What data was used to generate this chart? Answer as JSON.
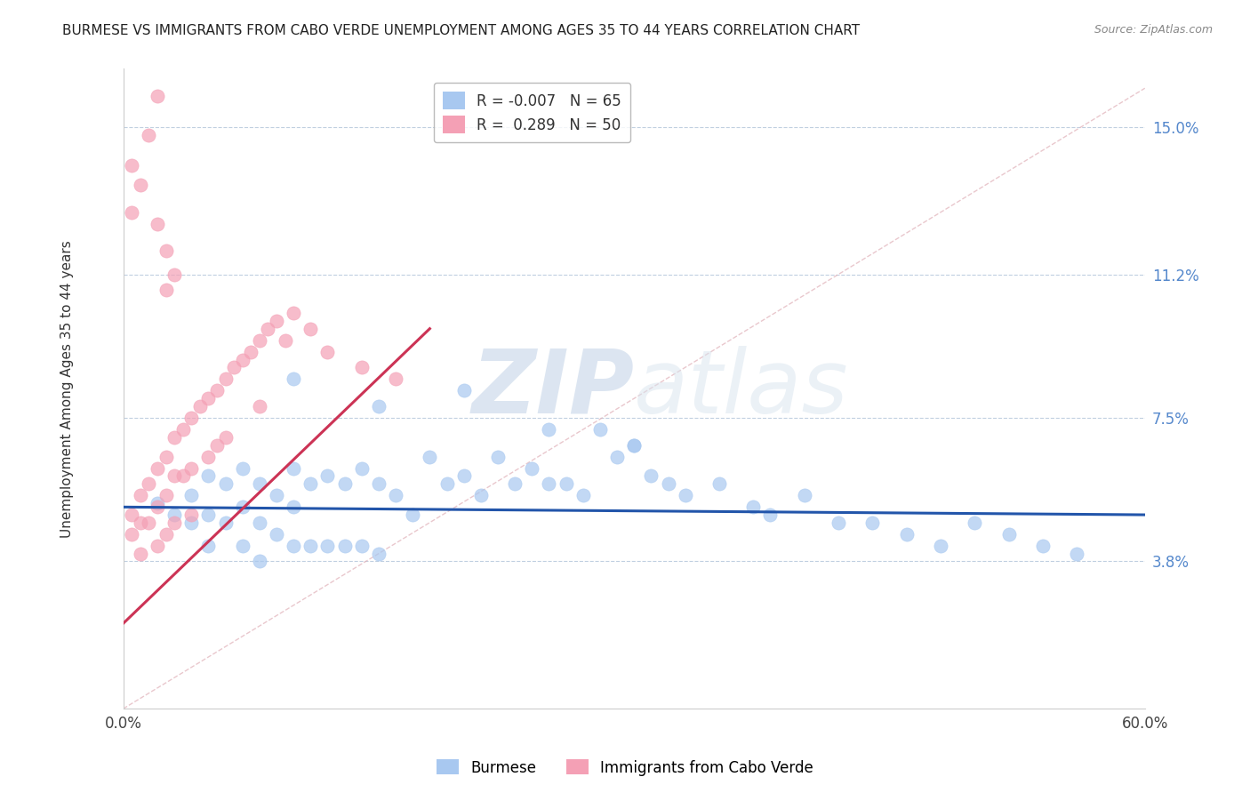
{
  "title": "BURMESE VS IMMIGRANTS FROM CABO VERDE UNEMPLOYMENT AMONG AGES 35 TO 44 YEARS CORRELATION CHART",
  "source": "Source: ZipAtlas.com",
  "ylabel": "Unemployment Among Ages 35 to 44 years",
  "yticks": [
    0.0,
    0.038,
    0.075,
    0.112,
    0.15
  ],
  "ytick_labels": [
    "",
    "3.8%",
    "7.5%",
    "11.2%",
    "15.0%"
  ],
  "xlim": [
    0.0,
    0.6
  ],
  "ylim": [
    0.0,
    0.165
  ],
  "burmese_R": -0.007,
  "burmese_N": 65,
  "caboverde_R": 0.289,
  "caboverde_N": 50,
  "burmese_color": "#a8c8f0",
  "caboverde_color": "#f4a0b5",
  "burmese_line_color": "#2255aa",
  "caboverde_line_color": "#cc3355",
  "diagonal_line_color": "#e0b0b8",
  "background_color": "#ffffff",
  "grid_color": "#c0cfe0",
  "watermark_zip": "ZIP",
  "watermark_atlas": "atlas",
  "burmese_x": [
    0.02,
    0.03,
    0.04,
    0.04,
    0.05,
    0.05,
    0.05,
    0.06,
    0.06,
    0.07,
    0.07,
    0.07,
    0.08,
    0.08,
    0.08,
    0.09,
    0.09,
    0.1,
    0.1,
    0.1,
    0.11,
    0.11,
    0.12,
    0.12,
    0.13,
    0.13,
    0.14,
    0.14,
    0.15,
    0.15,
    0.16,
    0.17,
    0.18,
    0.19,
    0.2,
    0.21,
    0.22,
    0.23,
    0.24,
    0.25,
    0.26,
    0.27,
    0.28,
    0.29,
    0.3,
    0.31,
    0.32,
    0.33,
    0.35,
    0.37,
    0.38,
    0.4,
    0.42,
    0.44,
    0.46,
    0.48,
    0.5,
    0.52,
    0.54,
    0.56,
    0.1,
    0.15,
    0.2,
    0.25,
    0.3
  ],
  "burmese_y": [
    0.053,
    0.05,
    0.055,
    0.048,
    0.06,
    0.05,
    0.042,
    0.058,
    0.048,
    0.062,
    0.052,
    0.042,
    0.058,
    0.048,
    0.038,
    0.055,
    0.045,
    0.062,
    0.052,
    0.042,
    0.058,
    0.042,
    0.06,
    0.042,
    0.058,
    0.042,
    0.062,
    0.042,
    0.058,
    0.04,
    0.055,
    0.05,
    0.065,
    0.058,
    0.06,
    0.055,
    0.065,
    0.058,
    0.062,
    0.058,
    0.058,
    0.055,
    0.072,
    0.065,
    0.068,
    0.06,
    0.058,
    0.055,
    0.058,
    0.052,
    0.05,
    0.055,
    0.048,
    0.048,
    0.045,
    0.042,
    0.048,
    0.045,
    0.042,
    0.04,
    0.085,
    0.078,
    0.082,
    0.072,
    0.068
  ],
  "caboverde_x": [
    0.005,
    0.005,
    0.01,
    0.01,
    0.01,
    0.015,
    0.015,
    0.02,
    0.02,
    0.02,
    0.025,
    0.025,
    0.025,
    0.03,
    0.03,
    0.03,
    0.035,
    0.035,
    0.04,
    0.04,
    0.04,
    0.045,
    0.05,
    0.05,
    0.055,
    0.055,
    0.06,
    0.06,
    0.065,
    0.07,
    0.075,
    0.08,
    0.08,
    0.085,
    0.09,
    0.095,
    0.1,
    0.11,
    0.12,
    0.14,
    0.16,
    0.01,
    0.02,
    0.025,
    0.03,
    0.015,
    0.02,
    0.025,
    0.005,
    0.005
  ],
  "caboverde_y": [
    0.05,
    0.045,
    0.055,
    0.048,
    0.04,
    0.058,
    0.048,
    0.062,
    0.052,
    0.042,
    0.065,
    0.055,
    0.045,
    0.07,
    0.06,
    0.048,
    0.072,
    0.06,
    0.075,
    0.062,
    0.05,
    0.078,
    0.08,
    0.065,
    0.082,
    0.068,
    0.085,
    0.07,
    0.088,
    0.09,
    0.092,
    0.095,
    0.078,
    0.098,
    0.1,
    0.095,
    0.102,
    0.098,
    0.092,
    0.088,
    0.085,
    0.135,
    0.125,
    0.118,
    0.112,
    0.148,
    0.158,
    0.108,
    0.14,
    0.128
  ],
  "burmese_line_x": [
    0.0,
    0.6
  ],
  "burmese_line_y": [
    0.052,
    0.05
  ],
  "caboverde_line_x": [
    0.0,
    0.18
  ],
  "caboverde_line_y": [
    0.022,
    0.098
  ]
}
